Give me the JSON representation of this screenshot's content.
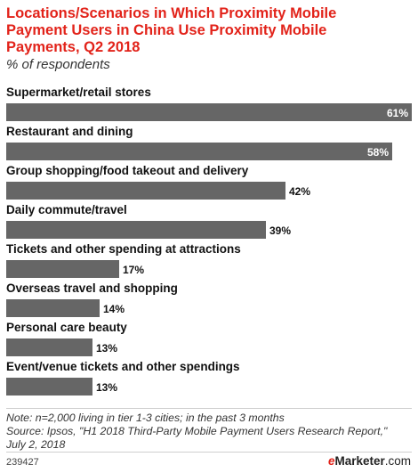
{
  "title": "Locations/Scenarios in Which Proximity Mobile Payment Users in China Use Proximity Mobile Payments, Q2 2018",
  "subtitle": "% of respondents",
  "chart_data": {
    "type": "bar",
    "orientation": "horizontal",
    "title": "Locations/Scenarios in Which Proximity Mobile Payment Users in China Use Proximity Mobile Payments, Q2 2018",
    "subtitle": "% of respondents",
    "categories": [
      "Supermarket/retail stores",
      "Restaurant and dining",
      "Group shopping/food takeout and delivery",
      "Daily commute/travel",
      "Tickets and other spending at attractions",
      "Overseas travel and shopping",
      "Personal care beauty",
      "Event/venue tickets and other spendings"
    ],
    "values": [
      61,
      58,
      42,
      39,
      17,
      14,
      13,
      13
    ],
    "value_labels": [
      "61%",
      "58%",
      "42%",
      "39%",
      "17%",
      "14%",
      "13%",
      "13%"
    ],
    "xlim": [
      0,
      61
    ],
    "grid": false,
    "bar_color": "#666666"
  },
  "note": "Note: n=2,000 living in tier 1-3 cities; in the past 3 months",
  "source": "Source: Ipsos, \"H1 2018 Third-Party Mobile Payment Users Research Report,\" July 2, 2018",
  "footer": {
    "chart_id": "239427",
    "brand_e": "e",
    "brand_rest": "Marketer",
    "brand_suffix": ".com"
  },
  "colors": {
    "title": "#e2231a",
    "bar": "#666666",
    "brand_accent": "#e2231a"
  }
}
